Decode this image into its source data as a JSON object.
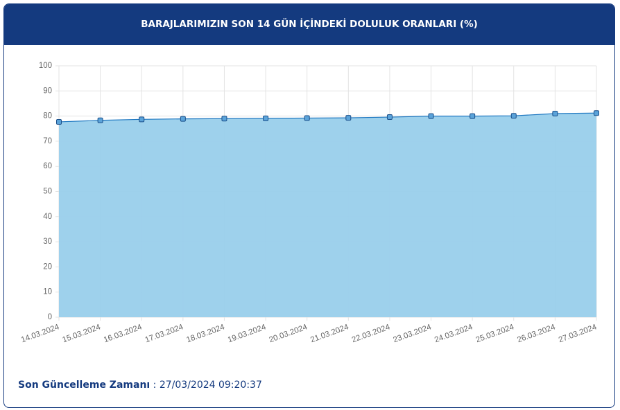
{
  "header": {
    "title": "BARAJLARIMIZIN SON 14 GÜN İÇİNDEKİ DOLULUK ORANLARI (%)"
  },
  "chart_data": {
    "type": "area",
    "categories": [
      "14.03.2024",
      "15.03.2024",
      "16.03.2024",
      "17.03.2024",
      "18.03.2024",
      "19.03.2024",
      "20.03.2024",
      "21.03.2024",
      "22.03.2024",
      "23.03.2024",
      "24.03.2024",
      "25.03.2024",
      "26.03.2024",
      "27.03.2024"
    ],
    "values": [
      77.7,
      78.3,
      78.7,
      78.9,
      79.0,
      79.1,
      79.2,
      79.3,
      79.6,
      80.0,
      80.0,
      80.1,
      81.0,
      81.2
    ],
    "color": "#1f78c1",
    "fill": "#99cfeb",
    "ylim": [
      0,
      100
    ],
    "yticks": [
      0,
      10,
      20,
      30,
      40,
      50,
      60,
      70,
      80,
      90,
      100
    ],
    "grid": true
  },
  "footer": {
    "label": "Son Güncelleme Zamanı",
    "separator": ":",
    "value": "27/03/2024 09:20:37"
  }
}
